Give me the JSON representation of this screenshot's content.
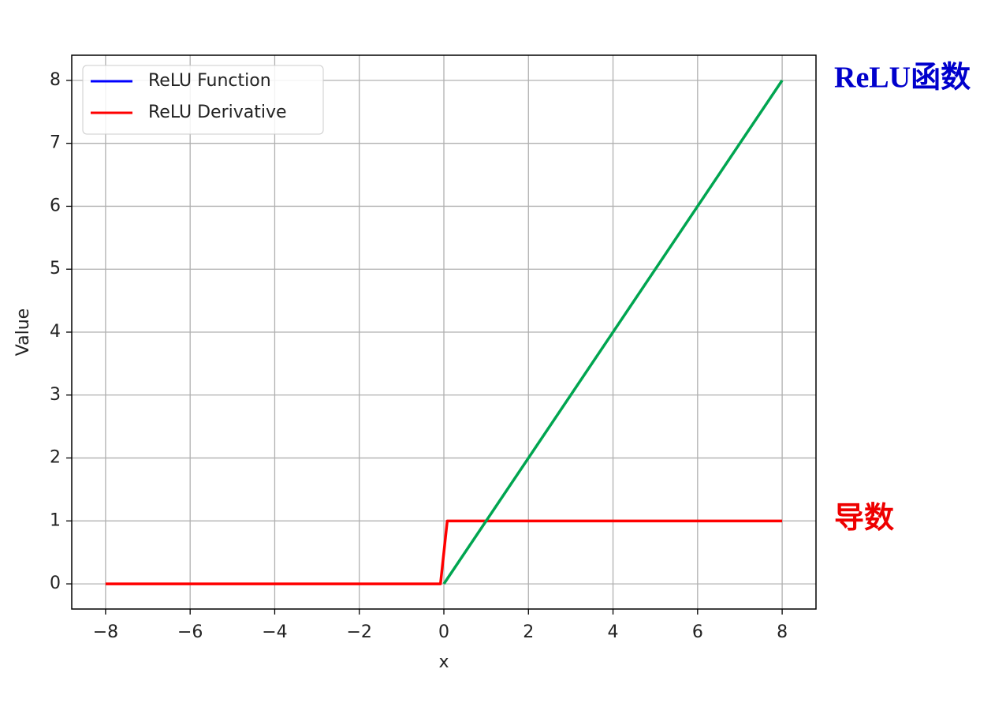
{
  "chart_data": {
    "type": "line",
    "xlabel": "x",
    "ylabel": "Value",
    "xlim": [
      -8.8,
      8.8
    ],
    "ylim": [
      -0.4,
      8.4
    ],
    "xticks": [
      {
        "value": -8,
        "label": "−8"
      },
      {
        "value": -6,
        "label": "−6"
      },
      {
        "value": -4,
        "label": "−4"
      },
      {
        "value": -2,
        "label": "−2"
      },
      0,
      2,
      4,
      6,
      8
    ],
    "yticks": [
      0,
      1,
      2,
      3,
      4,
      5,
      6,
      7,
      8
    ],
    "grid": true,
    "legend": "upper left",
    "series": [
      {
        "name": "ReLU Function",
        "color": "#00a550",
        "legend_color": "#0000ff",
        "x": [
          0,
          8
        ],
        "values": [
          0,
          8
        ]
      },
      {
        "name": "ReLU Derivative",
        "color": "#ff0000",
        "legend_color": "#ff0000",
        "x": [
          -8,
          -0.08,
          0.08,
          8
        ],
        "values": [
          0,
          0,
          1,
          1
        ]
      }
    ],
    "annotations": [
      {
        "text": "ReLU函数",
        "color": "#0000cc"
      },
      {
        "text": "导数",
        "color": "#ee0000"
      }
    ]
  }
}
